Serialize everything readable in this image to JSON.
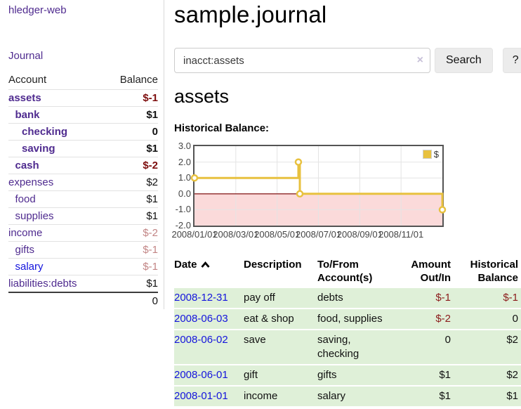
{
  "colors": {
    "link_purple": "#4f2b8f",
    "link_blue": "#1414dd",
    "neg_strong": "#7d0d0d",
    "neg_weak": "#c28585",
    "neg_table": "#8b1b1b",
    "row_green": "#dff0d8"
  },
  "sidebar": {
    "brand": "hledger-web",
    "journal_link": "Journal",
    "accounts_header": {
      "account": "Account",
      "balance": "Balance"
    },
    "accounts": [
      {
        "name": "assets",
        "balance": "$-1",
        "depth": 1,
        "bold": true,
        "neg": true,
        "blue": false
      },
      {
        "name": "bank",
        "balance": "$1",
        "depth": 2,
        "bold": true,
        "neg": false,
        "blue": false
      },
      {
        "name": "checking",
        "balance": "0",
        "depth": 3,
        "bold": true,
        "neg": false,
        "blue": false
      },
      {
        "name": "saving",
        "balance": "$1",
        "depth": 3,
        "bold": true,
        "neg": false,
        "blue": false
      },
      {
        "name": "cash",
        "balance": "$-2",
        "depth": 2,
        "bold": true,
        "neg": true,
        "blue": false
      },
      {
        "name": "expenses",
        "balance": "$2",
        "depth": 1,
        "bold": false,
        "neg": false,
        "blue": false
      },
      {
        "name": "food",
        "balance": "$1",
        "depth": 2,
        "bold": false,
        "neg": false,
        "blue": false
      },
      {
        "name": "supplies",
        "balance": "$1",
        "depth": 2,
        "bold": false,
        "neg": false,
        "blue": false
      },
      {
        "name": "income",
        "balance": "$-2",
        "depth": 1,
        "bold": false,
        "neg": true,
        "blue": false
      },
      {
        "name": "gifts",
        "balance": "$-1",
        "depth": 2,
        "bold": false,
        "neg": true,
        "blue": false
      },
      {
        "name": "salary",
        "balance": "$-1",
        "depth": 2,
        "bold": false,
        "neg": true,
        "blue": true
      },
      {
        "name": "liabilities:debts",
        "balance": "$1",
        "depth": 1,
        "bold": false,
        "neg": false,
        "blue": false
      }
    ],
    "total": "0"
  },
  "header": {
    "title": "sample.journal"
  },
  "search": {
    "value": "inacct:assets",
    "clear_icon": "×",
    "button_label": "Search",
    "help_label": "?"
  },
  "account_page": {
    "title": "assets",
    "chart_label": "Historical Balance:"
  },
  "chart_data": {
    "type": "line",
    "mode": "step",
    "title": "Historical Balance",
    "x_range": [
      0,
      12
    ],
    "y_range": [
      -2,
      3
    ],
    "series": [
      {
        "name": "$",
        "color": "#e8c13f",
        "points_note": "x in months from 2008-01-01; balance steps",
        "points": [
          [
            0,
            1
          ],
          [
            5.03,
            2
          ],
          [
            5.1,
            0
          ],
          [
            12,
            -1
          ]
        ]
      }
    ],
    "x_ticks": [
      {
        "pos": 0,
        "label": "2008/01/01"
      },
      {
        "pos": 2,
        "label": "2008/03/01"
      },
      {
        "pos": 4,
        "label": "2008/05/01"
      },
      {
        "pos": 6,
        "label": "2008/07/01"
      },
      {
        "pos": 8,
        "label": "2008/09/01"
      },
      {
        "pos": 10,
        "label": "2008/11/01"
      }
    ],
    "y_ticks": [
      {
        "value": 3,
        "label": "3.0"
      },
      {
        "value": 2,
        "label": "2.0"
      },
      {
        "value": 1,
        "label": "1.0"
      },
      {
        "value": 0,
        "label": "0.0"
      },
      {
        "value": -1,
        "label": "-1.0"
      },
      {
        "value": -2,
        "label": "-2.0"
      }
    ],
    "negative_fill": "#fbdada",
    "zero_line_color": "#8b2626",
    "grid_color": "#e4e4e4",
    "border_color": "#545454",
    "legend": {
      "label": "$",
      "swatch_color": "#e8c13f",
      "position": "top-right"
    }
  },
  "register": {
    "columns": [
      {
        "label": "Date",
        "sort_indicator": "asc"
      },
      {
        "label": "Description"
      },
      {
        "label": "To/From\nAccount(s)"
      },
      {
        "label": "Amount\nOut/In"
      },
      {
        "label": "Historical\nBalance"
      }
    ],
    "rows": [
      {
        "date": "2008-12-31",
        "description": "pay off",
        "accounts": "debts",
        "amount": "$-1",
        "amount_neg": true,
        "balance": "$-1",
        "balance_neg": true
      },
      {
        "date": "2008-06-03",
        "description": "eat & shop",
        "accounts": "food, supplies",
        "amount": "$-2",
        "amount_neg": true,
        "balance": "0",
        "balance_neg": false
      },
      {
        "date": "2008-06-02",
        "description": "save",
        "accounts": "saving,\nchecking",
        "amount": "0",
        "amount_neg": false,
        "balance": "$2",
        "balance_neg": false
      },
      {
        "date": "2008-06-01",
        "description": "gift",
        "accounts": "gifts",
        "amount": "$1",
        "amount_neg": false,
        "balance": "$2",
        "balance_neg": false
      },
      {
        "date": "2008-01-01",
        "description": "income",
        "accounts": "salary",
        "amount": "$1",
        "amount_neg": false,
        "balance": "$1",
        "balance_neg": false
      }
    ]
  }
}
